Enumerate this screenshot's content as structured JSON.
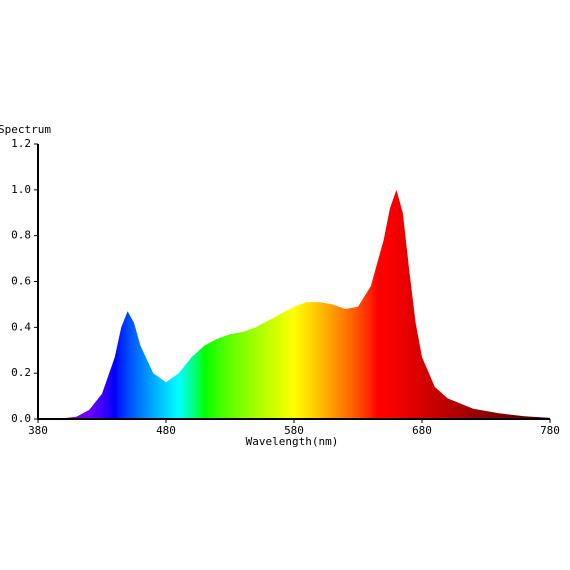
{
  "chart_data": {
    "type": "area",
    "title": "Spectrum",
    "x_label": "Wavelength(nm)",
    "x": [
      380,
      390,
      400,
      410,
      420,
      430,
      440,
      445,
      450,
      455,
      460,
      470,
      480,
      490,
      500,
      510,
      520,
      530,
      540,
      550,
      560,
      570,
      580,
      590,
      600,
      610,
      620,
      630,
      640,
      650,
      655,
      660,
      665,
      670,
      675,
      680,
      690,
      700,
      720,
      740,
      760,
      780
    ],
    "values": [
      0,
      0,
      0.003,
      0.01,
      0.04,
      0.11,
      0.27,
      0.4,
      0.47,
      0.42,
      0.32,
      0.2,
      0.16,
      0.2,
      0.27,
      0.32,
      0.35,
      0.37,
      0.38,
      0.4,
      0.43,
      0.46,
      0.49,
      0.51,
      0.51,
      0.5,
      0.48,
      0.49,
      0.58,
      0.78,
      0.92,
      1.0,
      0.9,
      0.65,
      0.42,
      0.27,
      0.14,
      0.09,
      0.045,
      0.025,
      0.012,
      0.005
    ],
    "xlim": [
      380,
      780
    ],
    "xticks": [
      380,
      480,
      580,
      680,
      780
    ],
    "ylim": [
      0,
      1.2
    ],
    "yticks": [
      {
        "value": 0,
        "label": "0.0"
      },
      {
        "value": 0.2,
        "label": "0.2"
      },
      {
        "value": 0.4,
        "label": "0.4"
      },
      {
        "value": 0.6,
        "label": "0.6"
      },
      {
        "value": 0.8,
        "label": "0.8"
      },
      {
        "value": 1,
        "label": "1.0"
      },
      {
        "value": 1.2,
        "label": "1.2"
      }
    ],
    "fill": "spectral"
  }
}
